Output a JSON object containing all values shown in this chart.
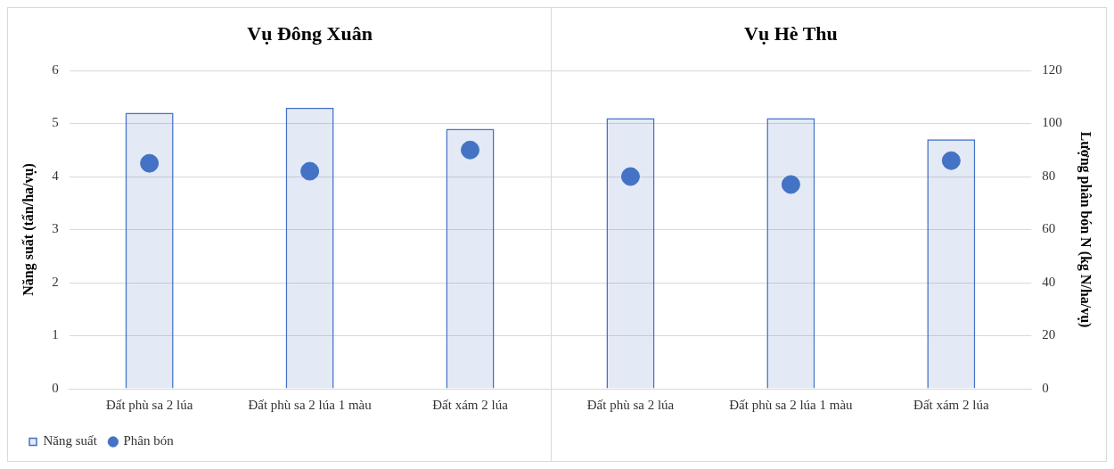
{
  "chart_data": {
    "type": "bar",
    "annotations": [
      "Vụ Đông Xuân",
      "Vụ Hè Thu"
    ],
    "ylabel": "Năng suất (tấn/ha/vụ)",
    "y2label": "Lượng phân bón N (kg N/ha/vụ)",
    "categories": [
      "Đất phù sa 2 lúa",
      "Đất phù sa 2 lúa 1 màu",
      "Đất xám 2 lúa",
      "Đất phù sa 2 lúa",
      "Đất phù sa 2 lúa 1 màu",
      "Đất xám 2 lúa"
    ],
    "series": [
      {
        "name": "Năng suất",
        "color": "#4472c4",
        "values": [
          5.2,
          5.3,
          4.9,
          5.1,
          5.1,
          4.7
        ]
      },
      {
        "name": "Phân bón",
        "type": "scatter",
        "axis": "y2",
        "marker": "circle",
        "color": "#4472c4",
        "values": [
          85,
          82,
          90,
          80,
          77,
          86
        ]
      }
    ],
    "ylim": [
      0,
      6
    ],
    "yticks": [
      0,
      1,
      2,
      3,
      4,
      5,
      6
    ],
    "y2lim": [
      0,
      120
    ],
    "y2ticks": [
      0,
      20,
      40,
      60,
      80,
      100,
      120
    ],
    "grid": "y",
    "legend": "bottom left"
  }
}
